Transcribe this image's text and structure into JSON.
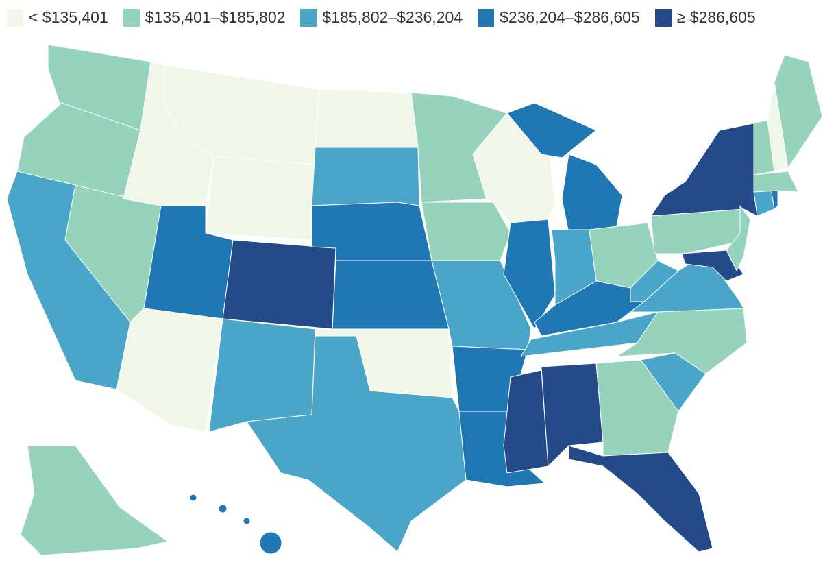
{
  "legend": {
    "items": [
      {
        "label": "< $135,401",
        "color": "#f0f7e8"
      },
      {
        "label": "$135,401–$185,802",
        "color": "#96d3bd"
      },
      {
        "label": "$185,802–$236,204",
        "color": "#4aa6c9"
      },
      {
        "label": "$236,204–$286,605",
        "color": "#1f78b4"
      },
      {
        "label": "≥ $286,605",
        "color": "#254a8a"
      }
    ]
  }
}
